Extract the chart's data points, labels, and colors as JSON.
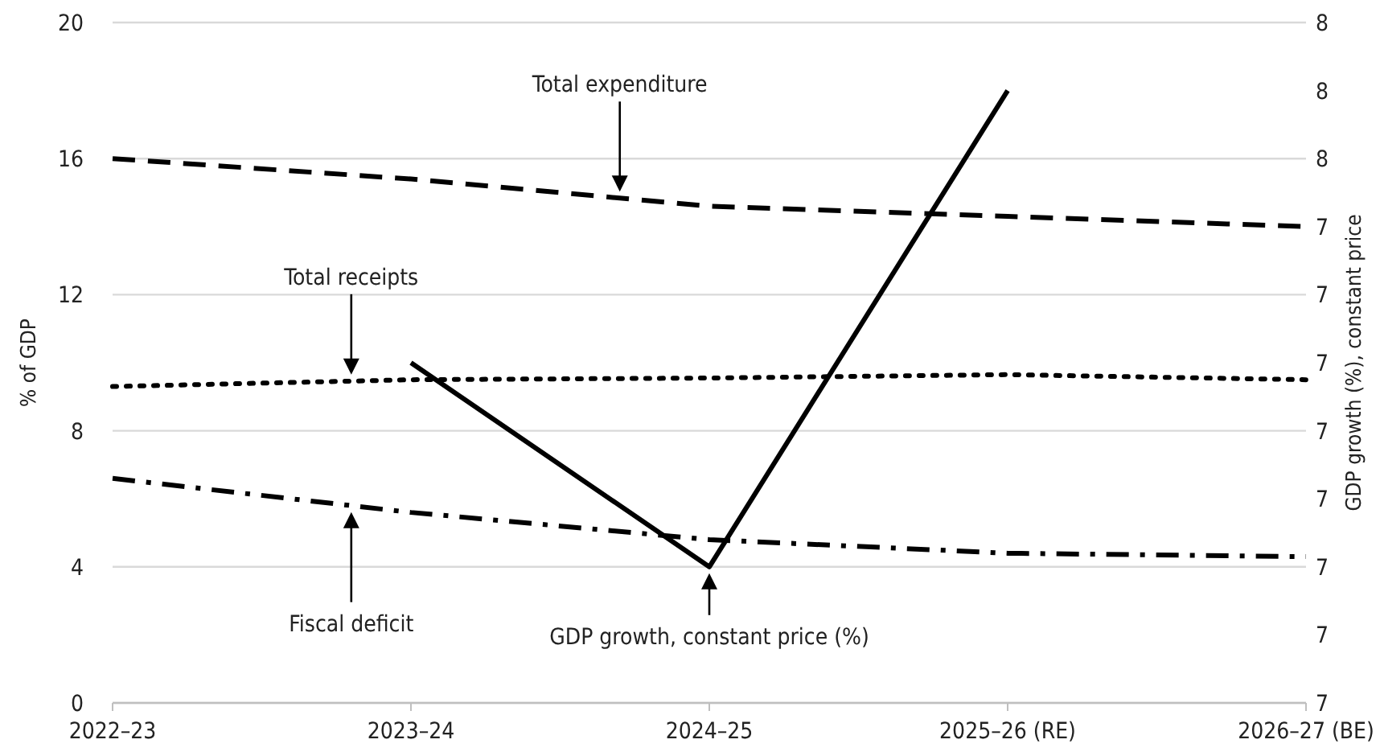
{
  "chart_data": {
    "type": "line",
    "xlabel": null,
    "ylabel": "% of GDP",
    "y2label": "GDP growth (%), constant price",
    "categories": [
      "2022–23",
      "2023–24",
      "2024–25",
      "2025–26 (RE)",
      "2026–27 (BE)"
    ],
    "ylim": [
      0,
      20
    ],
    "yticks": [
      0,
      4,
      8,
      12,
      16,
      20
    ],
    "y2lim": [
      6.7,
      7.7
    ],
    "y2ticks": [
      {
        "value": 6.7,
        "label": "7"
      },
      {
        "value": 6.8,
        "label": "7"
      },
      {
        "value": 6.9,
        "label": "7"
      },
      {
        "value": 7.0,
        "label": "7"
      },
      {
        "value": 7.1,
        "label": "7"
      },
      {
        "value": 7.2,
        "label": "7"
      },
      {
        "value": 7.3,
        "label": "7"
      },
      {
        "value": 7.4,
        "label": "7"
      },
      {
        "value": 7.5,
        "label": "8"
      },
      {
        "value": 7.6,
        "label": "8"
      },
      {
        "value": 7.7,
        "label": "8"
      }
    ],
    "grid": "y",
    "series": [
      {
        "name": "Total expenditure",
        "color": "#000000",
        "line_style": "dashed",
        "values": [
          16.0,
          15.4,
          14.6,
          14.3,
          14.0
        ]
      },
      {
        "name": "Total receipts",
        "color": "#000000",
        "line_style": "dotted",
        "values": [
          9.3,
          9.5,
          9.55,
          9.65,
          9.5
        ]
      },
      {
        "name": "Fiscal deficit",
        "color": "#000000",
        "line_style": "dashdot",
        "values": [
          6.6,
          5.6,
          4.8,
          4.4,
          4.3
        ]
      },
      {
        "name": "GDP growth, constant price (%)",
        "color": "#000000",
        "line_style": "solid",
        "axis": "y2",
        "values": [
          null,
          7.2,
          6.9,
          7.6,
          null
        ]
      }
    ]
  }
}
